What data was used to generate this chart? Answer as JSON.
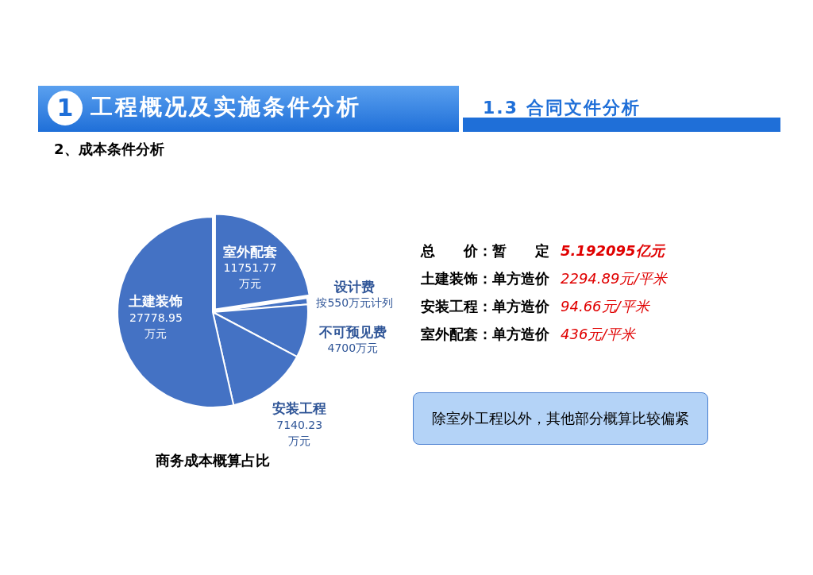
{
  "chart_data": {
    "type": "pie",
    "title": "商务成本概算占比",
    "categories": [
      "室外配套",
      "设计费",
      "不可预见费",
      "安装工程",
      "土建装饰"
    ],
    "values": [
      11751.77,
      550,
      4700,
      7140.23,
      27778.95
    ],
    "value_labels": [
      "11751.77\n万元",
      "按550万元计列",
      "4700万元",
      "7140.23\n万元",
      "27778.95\n万元"
    ],
    "colors": [
      "#4472c4",
      "#4472c4",
      "#4472c4",
      "#4472c4",
      "#4472c4"
    ],
    "legend": false,
    "annotations": [
      "1",
      "工程概况及实施条件分析",
      "1.3 合同文件分析",
      "2、成本条件分析",
      "总　　价：暂　　定",
      "5.192095亿元",
      "土建装饰：单方造价",
      "2294.89元/平米",
      "安装工程：单方造价",
      "94.66元/平米",
      "室外配套：单方造价",
      "436元/平米",
      "除室外工程以外，其他部分概算比较偏紧"
    ]
  }
}
